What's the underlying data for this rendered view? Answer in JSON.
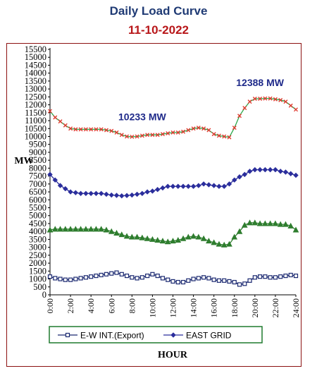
{
  "title": "Daily Load Curve",
  "date": "11-10-2022",
  "chart_data": {
    "type": "line",
    "ylabel": "MW",
    "xlabel": "HOUR",
    "ylim": [
      0,
      15500
    ],
    "ytick_step": 500,
    "xlim": [
      0,
      24
    ],
    "xticks": [
      "0:00",
      "2:00",
      "4:00",
      "6:00",
      "8:00",
      "10:00",
      "12:00",
      "14:00",
      "16:00",
      "18:00",
      "20:00",
      "22:00",
      "24:00"
    ],
    "x": [
      0,
      0.5,
      1,
      1.5,
      2,
      2.5,
      3,
      3.5,
      4,
      4.5,
      5,
      5.5,
      6,
      6.5,
      7,
      7.5,
      8,
      8.5,
      9,
      9.5,
      10,
      10.5,
      11,
      11.5,
      12,
      12.5,
      13,
      13.5,
      14,
      14.5,
      15,
      15.5,
      16,
      16.5,
      17,
      17.5,
      18,
      18.5,
      19,
      19.5,
      20,
      20.5,
      21,
      21.5,
      22,
      22.5,
      23,
      23.5,
      24
    ],
    "series": [
      {
        "name": "",
        "color": "#e03a2f",
        "line": "#2aa84a",
        "marker": "x",
        "values": [
          11600,
          11200,
          10950,
          10700,
          10500,
          10450,
          10450,
          10450,
          10450,
          10450,
          10450,
          10400,
          10350,
          10250,
          10100,
          10000,
          9980,
          10000,
          10050,
          10100,
          10100,
          10100,
          10150,
          10200,
          10250,
          10250,
          10300,
          10400,
          10500,
          10550,
          10500,
          10400,
          10150,
          10050,
          10000,
          9950,
          10550,
          11300,
          11800,
          12200,
          12380,
          12380,
          12400,
          12400,
          12350,
          12300,
          12200,
          11950,
          11700
        ]
      },
      {
        "name": "EAST GRID",
        "color": "#2b2e9c",
        "marker": "diamond",
        "values": [
          7600,
          7250,
          6900,
          6700,
          6500,
          6450,
          6400,
          6400,
          6400,
          6400,
          6400,
          6350,
          6300,
          6280,
          6250,
          6270,
          6300,
          6350,
          6400,
          6500,
          6550,
          6650,
          6750,
          6850,
          6850,
          6850,
          6850,
          6850,
          6850,
          6900,
          7000,
          6950,
          6900,
          6850,
          6850,
          7000,
          7250,
          7450,
          7600,
          7800,
          7900,
          7900,
          7900,
          7900,
          7900,
          7800,
          7750,
          7650,
          7550
        ]
      },
      {
        "name": "",
        "color": "#2e7d2e",
        "marker": "triangle",
        "values": [
          4100,
          4150,
          4150,
          4150,
          4150,
          4150,
          4150,
          4150,
          4150,
          4150,
          4150,
          4100,
          4000,
          3900,
          3800,
          3700,
          3650,
          3650,
          3600,
          3550,
          3500,
          3450,
          3400,
          3350,
          3400,
          3450,
          3550,
          3650,
          3700,
          3650,
          3550,
          3400,
          3300,
          3200,
          3150,
          3200,
          3650,
          4000,
          4400,
          4550,
          4550,
          4500,
          4500,
          4500,
          4500,
          4450,
          4450,
          4350,
          4100
        ]
      },
      {
        "name": "E-W INT.(Export)",
        "color": "#1a2870",
        "marker": "square",
        "values": [
          1150,
          1050,
          1000,
          950,
          950,
          1000,
          1050,
          1100,
          1150,
          1200,
          1250,
          1300,
          1350,
          1400,
          1300,
          1200,
          1100,
          1050,
          1100,
          1200,
          1300,
          1200,
          1050,
          950,
          850,
          800,
          800,
          900,
          1000,
          1050,
          1100,
          1050,
          950,
          900,
          900,
          850,
          800,
          650,
          700,
          900,
          1100,
          1150,
          1150,
          1100,
          1100,
          1150,
          1200,
          1250,
          1200
        ]
      }
    ],
    "annotations": [
      {
        "text": "12388 MW",
        "x": 20.5,
        "y": 12388
      },
      {
        "text": "10233 MW",
        "x": 9,
        "y": 10233
      }
    ],
    "grid": false,
    "legend": "bottom"
  }
}
